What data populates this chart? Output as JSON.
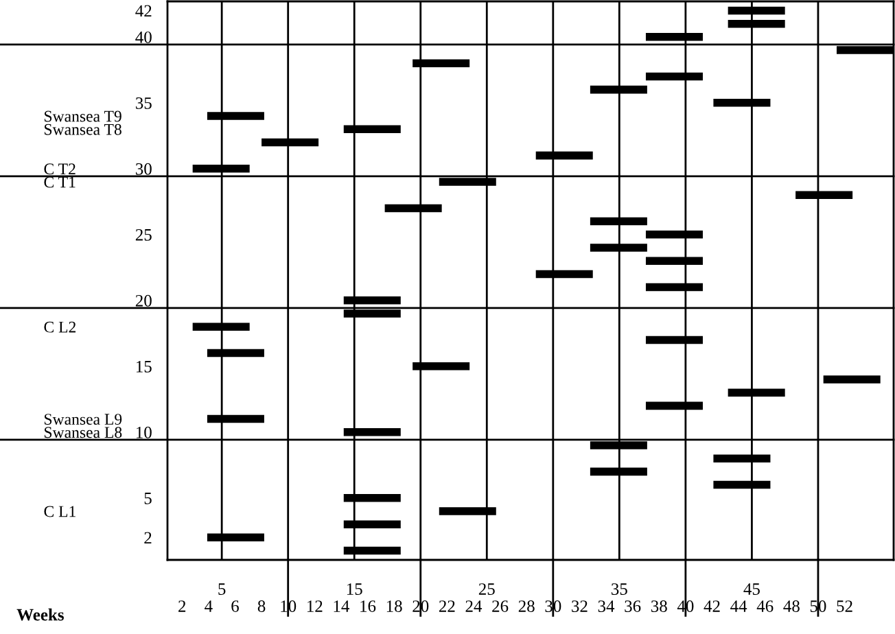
{
  "chart_data": {
    "type": "bar",
    "orientation": "horizontal",
    "categories": [
      "42",
      null,
      "40",
      null,
      null,
      null,
      null,
      "35",
      null,
      null,
      null,
      null,
      "30",
      null,
      null,
      null,
      null,
      "25",
      null,
      null,
      null,
      null,
      "20",
      null,
      null,
      null,
      null,
      "15",
      null,
      null,
      null,
      null,
      "10",
      null,
      null,
      null,
      null,
      "5",
      null,
      null,
      "2",
      null
    ],
    "y2_categories": [
      null,
      null,
      null,
      null,
      null,
      null,
      null,
      null,
      "Swansea T9",
      "Swansea T8",
      null,
      null,
      "C T2",
      "C T1",
      null,
      null,
      null,
      null,
      null,
      null,
      null,
      null,
      null,
      null,
      "C L2",
      null,
      null,
      null,
      null,
      null,
      null,
      "Swansea L9",
      "Swansea L8",
      null,
      null,
      null,
      null,
      null,
      "C L1",
      null,
      null,
      null
    ],
    "base": [
      43.2,
      43.2,
      37.0,
      51.4,
      19.4,
      37.0,
      32.8,
      42.1,
      3.9,
      14.2,
      8.0,
      28.7,
      2.8,
      21.4,
      48.3,
      17.3,
      32.8,
      37.0,
      32.8,
      37.0,
      28.7,
      37.0,
      14.2,
      14.2,
      2.8,
      37.0,
      3.9,
      19.4,
      50.4,
      43.2,
      37.0,
      3.9,
      14.2,
      32.8,
      42.1,
      32.8,
      42.1,
      14.2,
      21.4,
      14.2,
      3.9,
      14.2
    ],
    "values": [
      4.3,
      4.3,
      4.3,
      4.3,
      4.3,
      4.3,
      4.3,
      4.3,
      4.3,
      4.3,
      4.3,
      4.3,
      4.3,
      4.3,
      4.3,
      4.3,
      4.3,
      4.3,
      4.3,
      4.3,
      4.3,
      4.3,
      4.3,
      4.3,
      4.3,
      4.3,
      4.3,
      4.3,
      4.3,
      4.3,
      4.3,
      4.3,
      4.3,
      4.3,
      4.3,
      4.3,
      4.3,
      4.3,
      4.3,
      4.3,
      4.3,
      4.3
    ],
    "color": "#000000",
    "xlim": [
      0.9,
      55.7
    ],
    "xticks": [
      5,
      {
        "value": 10,
        "label": null
      },
      15,
      {
        "value": 20,
        "label": null
      },
      25,
      {
        "value": 30,
        "label": null
      },
      35,
      {
        "value": 40,
        "label": null
      },
      45,
      {
        "value": 50,
        "label": null
      }
    ],
    "x2label": "Weeks",
    "x2lim": [
      0.9,
      55.7
    ],
    "x2ticks": [
      2,
      4,
      6,
      8,
      10,
      12,
      14,
      16,
      18,
      20,
      22,
      24,
      26,
      28,
      30,
      32,
      34,
      36,
      38,
      40,
      42,
      44,
      46,
      48,
      50,
      52
    ],
    "grid": "x"
  }
}
